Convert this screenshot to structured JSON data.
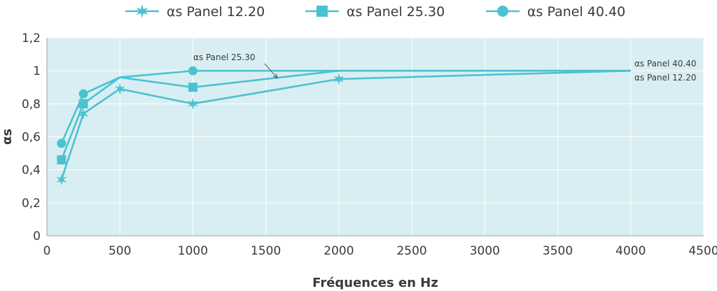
{
  "chart_data": {
    "type": "line",
    "xlabel": "Fréquences en Hz",
    "ylabel": "αs",
    "xlim": [
      0,
      4500
    ],
    "ylim": [
      0,
      1.2
    ],
    "x_ticks": [
      0,
      500,
      1000,
      1500,
      2000,
      2500,
      3000,
      3500,
      4000,
      4500
    ],
    "y_ticks": [
      0,
      0.2,
      0.4,
      0.6,
      0.8,
      1,
      1.2
    ],
    "y_tick_labels": [
      "0",
      "0,2",
      "0,4",
      "0,6",
      "0,8",
      "1",
      "1,2"
    ],
    "grid": true,
    "legend_position": "top",
    "series": [
      {
        "name": "αs Panel 12.20",
        "marker": "star",
        "points": [
          {
            "x": 100,
            "y": 0.34,
            "marked": true
          },
          {
            "x": 250,
            "y": 0.74,
            "marked": true
          },
          {
            "x": 500,
            "y": 0.89,
            "marked": true
          },
          {
            "x": 1000,
            "y": 0.8,
            "marked": true
          },
          {
            "x": 2000,
            "y": 0.95,
            "marked": true
          },
          {
            "x": 4000,
            "y": 1.0,
            "marked": false
          }
        ]
      },
      {
        "name": "αs Panel 25.30",
        "marker": "square",
        "points": [
          {
            "x": 100,
            "y": 0.46,
            "marked": true
          },
          {
            "x": 250,
            "y": 0.8,
            "marked": true
          },
          {
            "x": 500,
            "y": 0.96,
            "marked": false
          },
          {
            "x": 1000,
            "y": 0.9,
            "marked": true
          },
          {
            "x": 2000,
            "y": 1.0,
            "marked": false
          },
          {
            "x": 4000,
            "y": 1.0,
            "marked": false
          }
        ]
      },
      {
        "name": "αs Panel 40.40",
        "marker": "circle",
        "points": [
          {
            "x": 100,
            "y": 0.56,
            "marked": true
          },
          {
            "x": 250,
            "y": 0.86,
            "marked": true
          },
          {
            "x": 500,
            "y": 0.96,
            "marked": false
          },
          {
            "x": 1000,
            "y": 1.0,
            "marked": true
          },
          {
            "x": 2000,
            "y": 1.0,
            "marked": false
          },
          {
            "x": 4000,
            "y": 1.0,
            "marked": false
          }
        ]
      }
    ],
    "annotations": [
      {
        "text": "αs Panel 25.30",
        "target_series": "αs Panel 25.30",
        "arrow": true
      },
      {
        "text": "αs Panel 40.40",
        "target_series": "αs Panel 40.40",
        "arrow": false
      },
      {
        "text": "αs Panel 12.20",
        "target_series": "αs Panel 12.20",
        "arrow": false
      }
    ]
  },
  "colors": {
    "series": "#4bc2cf",
    "plot_background": "#d9eef3",
    "grid": "#ffffff",
    "text": "#3a3a3a",
    "annotation_arrow": "#555555"
  }
}
